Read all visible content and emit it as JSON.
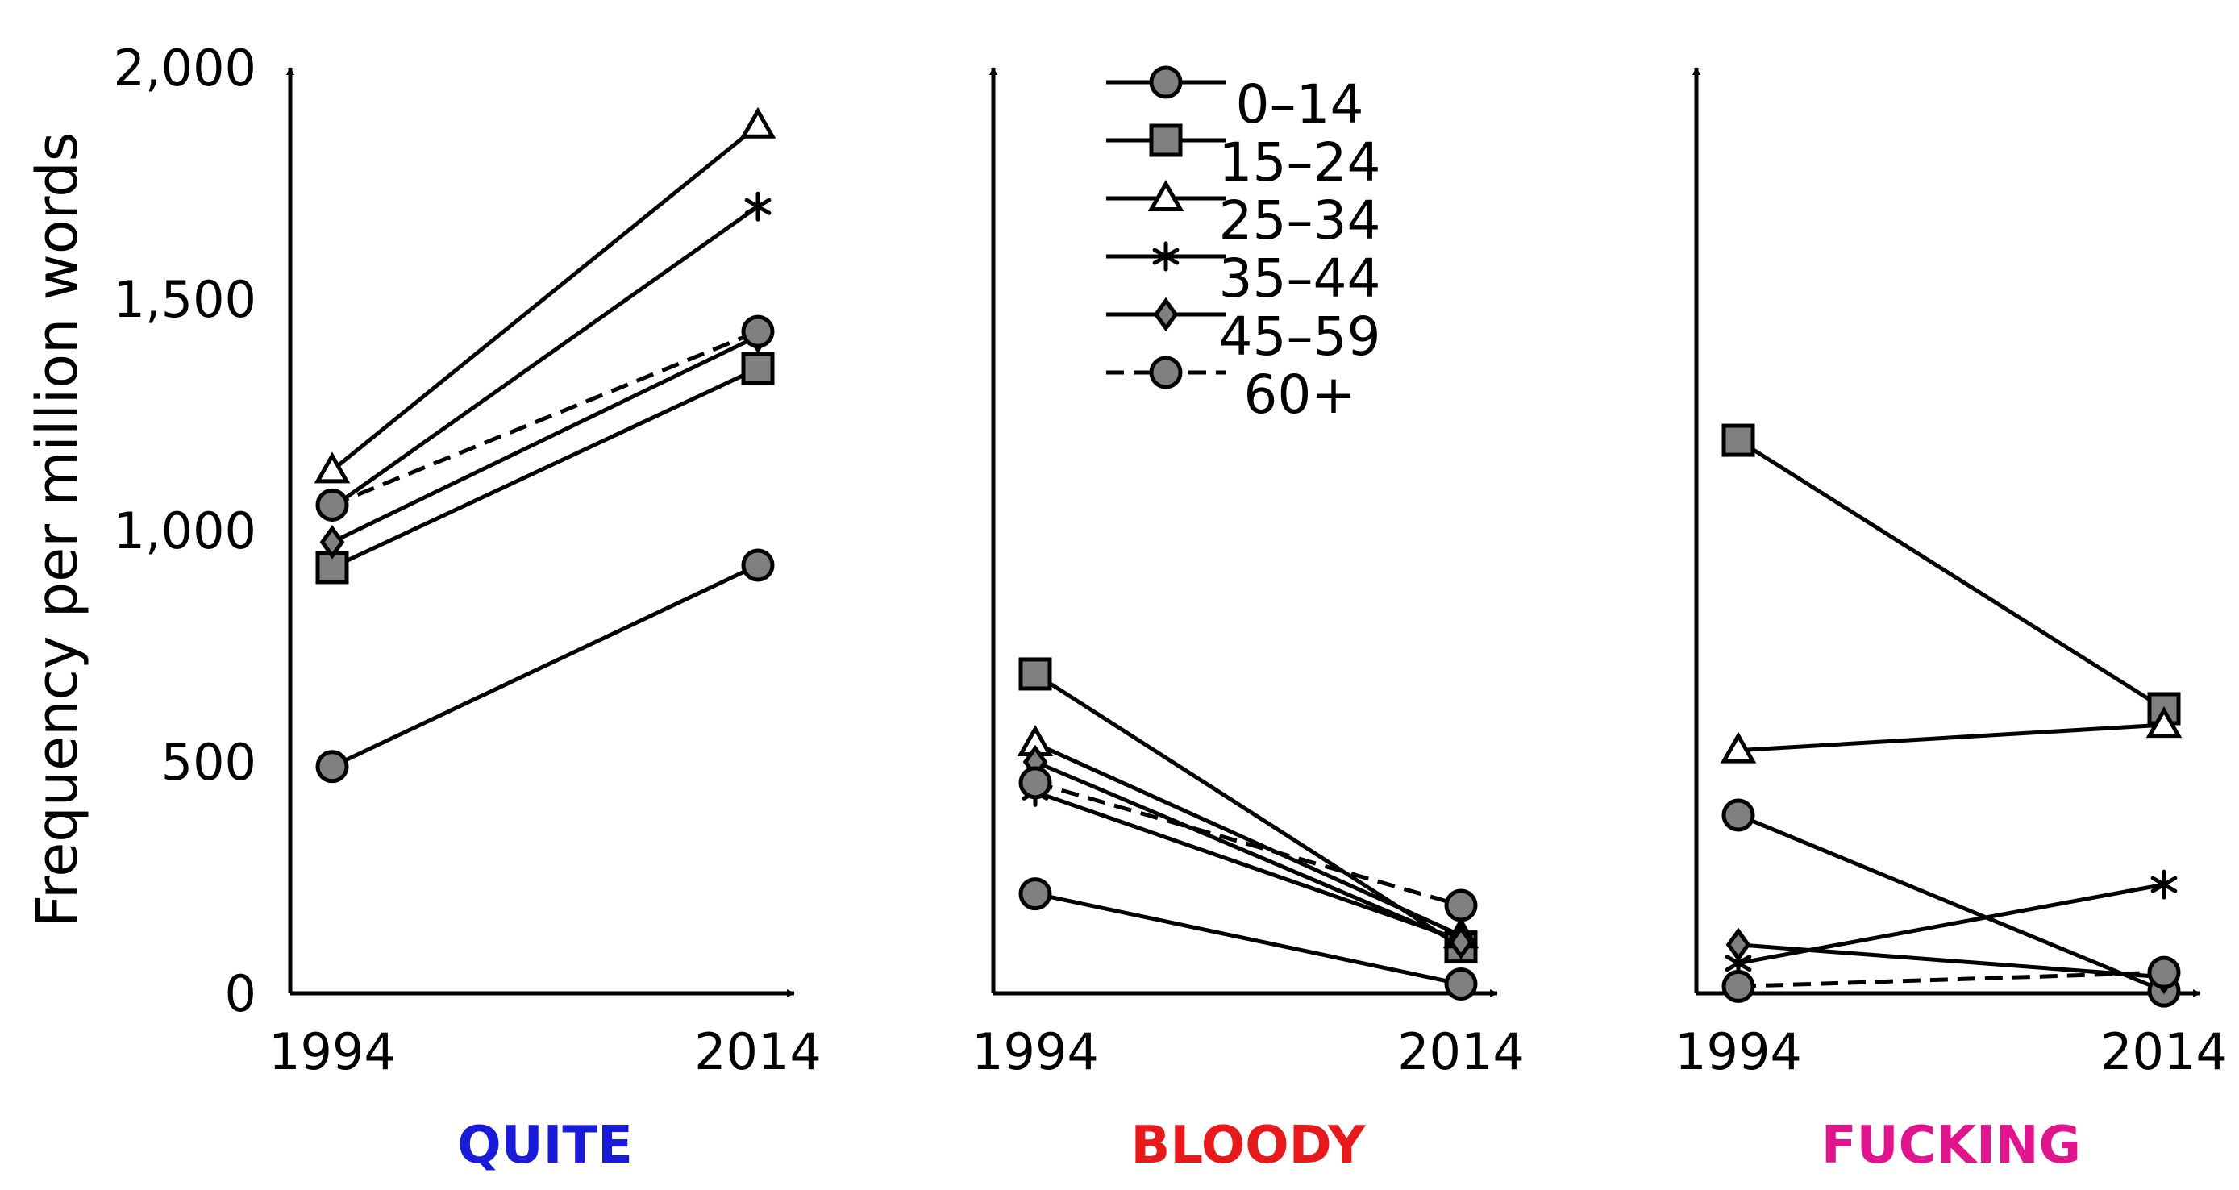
{
  "chart_data": {
    "type": "line",
    "ylabel": "Frequency per million words",
    "ylim": [
      0,
      2000
    ],
    "yticks": [
      "0",
      "500",
      "1,000",
      "1,500",
      "2,000"
    ],
    "ytick_values": [
      0,
      500,
      1000,
      1500,
      2000
    ],
    "x": [
      "1994",
      "2014"
    ],
    "legend_position": "top of middle panel",
    "legend": [
      {
        "label": "0–14",
        "marker": "circle",
        "dash": false
      },
      {
        "label": "15–24",
        "marker": "square",
        "dash": false
      },
      {
        "label": "25–34",
        "marker": "triangle",
        "dash": false
      },
      {
        "label": "35–44",
        "marker": "star",
        "dash": false
      },
      {
        "label": "45–59",
        "marker": "diamond",
        "dash": false
      },
      {
        "label": "60+",
        "marker": "circle",
        "dash": true
      }
    ],
    "panels": [
      {
        "title": "QUITE",
        "title_color": "#1a1adb",
        "series": [
          {
            "name": "0–14",
            "values": [
              490,
              925
            ]
          },
          {
            "name": "15–24",
            "values": [
              920,
              1350
            ]
          },
          {
            "name": "25–34",
            "values": [
              1130,
              1875
            ]
          },
          {
            "name": "35–44",
            "values": [
              1050,
              1700
            ]
          },
          {
            "name": "45–59",
            "values": [
              975,
              1420
            ]
          },
          {
            "name": "60+",
            "values": [
              1055,
              1430
            ]
          }
        ]
      },
      {
        "title": "BLOODY",
        "title_color": "#e8191b",
        "series": [
          {
            "name": "0–14",
            "values": [
              215,
              20
            ]
          },
          {
            "name": "15–24",
            "values": [
              690,
              100
            ]
          },
          {
            "name": "25–34",
            "values": [
              540,
              125
            ]
          },
          {
            "name": "35–44",
            "values": [
              435,
              115
            ]
          },
          {
            "name": "45–59",
            "values": [
              500,
              110
            ]
          },
          {
            "name": "60+",
            "values": [
              455,
              190
            ]
          }
        ]
      },
      {
        "title": "FUCKING",
        "title_color": "#e0148c",
        "series": [
          {
            "name": "0–14",
            "values": [
              385,
              5
            ]
          },
          {
            "name": "15–24",
            "values": [
              1195,
              615
            ]
          },
          {
            "name": "25–34",
            "values": [
              525,
              580
            ]
          },
          {
            "name": "35–44",
            "values": [
              65,
              235
            ]
          },
          {
            "name": "45–59",
            "values": [
              105,
              35
            ]
          },
          {
            "name": "60+",
            "values": [
              15,
              45
            ]
          }
        ]
      }
    ]
  }
}
